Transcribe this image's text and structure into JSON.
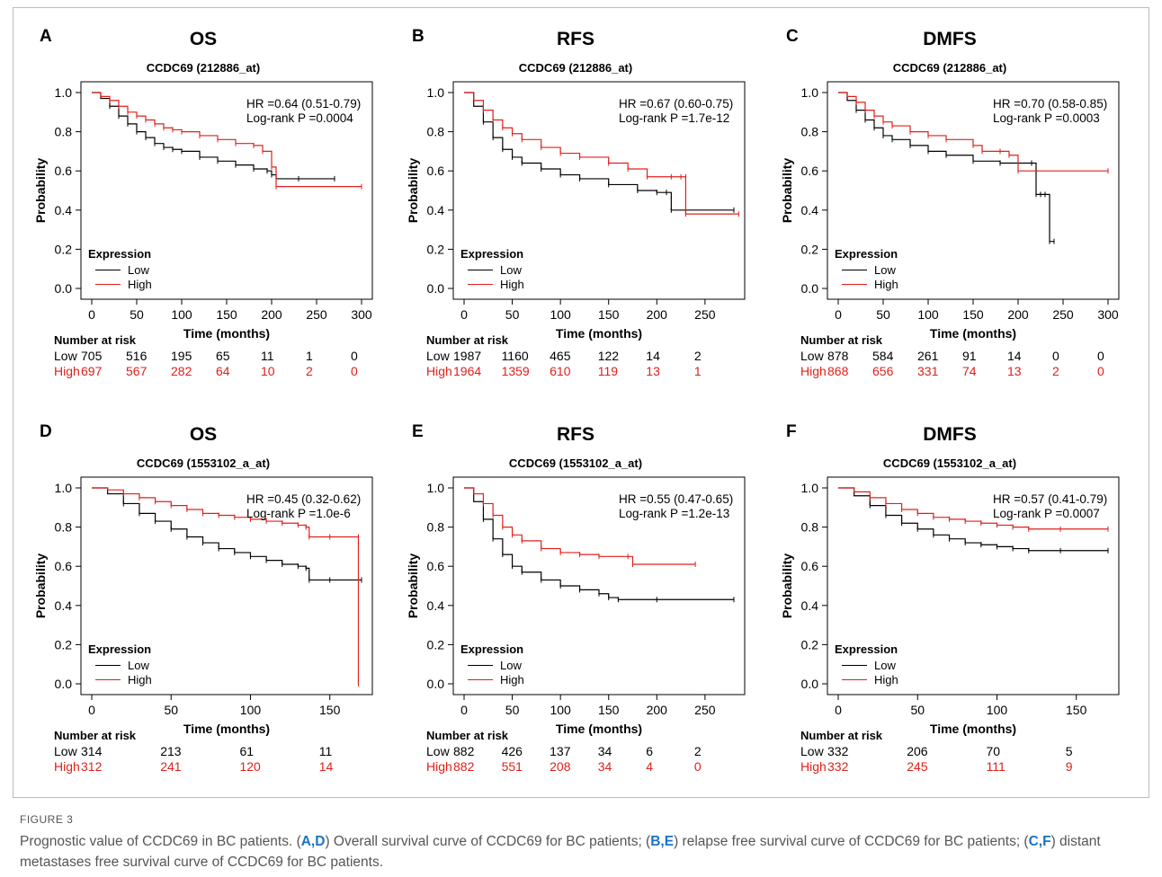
{
  "figure_label": "FIGURE 3",
  "caption": {
    "p1": "Prognostic value of CCDC69 in BC patients. (",
    "l1": "A,D",
    "p2": ") Overall survival curve of CCDC69 for BC patients; (",
    "l2": "B,E",
    "p3": ") relapse free survival curve of CCDC69 for BC patients; (",
    "l3": "C,F",
    "p4": ") distant metastases free survival curve of CCDC69 for BC patients."
  },
  "colors": {
    "low": "#000000",
    "high": "#e0201b",
    "caption_link": "#1a73c8"
  },
  "risk_title": "Number at risk",
  "legend_title": "Expression",
  "x_axis_label": "Time (months)",
  "y_axis_label": "Probability",
  "chart_data": [
    {
      "type": "line",
      "panel": "A",
      "title": "OS",
      "subtitle": "CCDC69 (212886_at)",
      "hr": "HR =0.64 (0.51-0.79)",
      "logrank": "Log-rank P =0.0004",
      "xlabel": "Time (months)",
      "ylabel": "Probability",
      "xlim": [
        0,
        300
      ],
      "xticks": [
        0,
        50,
        100,
        150,
        200,
        250,
        300
      ],
      "ylim": [
        0,
        1
      ],
      "yticks": [
        "0.0",
        "0.2",
        "0.4",
        "0.6",
        "0.8",
        "1.0"
      ],
      "legend": [
        "Low",
        "High"
      ],
      "legend_position": "bottom-left",
      "series": [
        {
          "name": "Low",
          "x": [
            0,
            10,
            20,
            30,
            40,
            50,
            60,
            70,
            80,
            90,
            100,
            120,
            140,
            160,
            180,
            195,
            200,
            205,
            230,
            270
          ],
          "y": [
            1.0,
            0.97,
            0.93,
            0.88,
            0.84,
            0.8,
            0.77,
            0.74,
            0.72,
            0.71,
            0.7,
            0.67,
            0.65,
            0.63,
            0.61,
            0.6,
            0.58,
            0.56,
            0.56,
            0.56
          ]
        },
        {
          "name": "High",
          "x": [
            0,
            10,
            20,
            30,
            40,
            50,
            60,
            70,
            80,
            90,
            100,
            120,
            140,
            160,
            180,
            190,
            200,
            205,
            300
          ],
          "y": [
            1.0,
            0.98,
            0.96,
            0.93,
            0.9,
            0.88,
            0.86,
            0.84,
            0.82,
            0.81,
            0.8,
            0.78,
            0.76,
            0.74,
            0.73,
            0.7,
            0.62,
            0.52,
            0.52
          ]
        }
      ],
      "risk": {
        "low": [
          "705",
          "516",
          "195",
          "65",
          "11",
          "1",
          "0"
        ],
        "high": [
          "697",
          "567",
          "282",
          "64",
          "10",
          "2",
          "0"
        ]
      }
    },
    {
      "type": "line",
      "panel": "B",
      "title": "RFS",
      "subtitle": "CCDC69 (212886_at)",
      "hr": "HR =0.67 (0.60-0.75)",
      "logrank": "Log-rank P =1.7e-12",
      "xlabel": "Time (months)",
      "ylabel": "Probability",
      "xlim": [
        0,
        280
      ],
      "xticks": [
        0,
        50,
        100,
        150,
        200,
        250
      ],
      "ylim": [
        0,
        1
      ],
      "yticks": [
        "0.0",
        "0.2",
        "0.4",
        "0.6",
        "0.8",
        "1.0"
      ],
      "legend": [
        "Low",
        "High"
      ],
      "legend_position": "bottom-left",
      "series": [
        {
          "name": "Low",
          "x": [
            0,
            10,
            20,
            30,
            40,
            50,
            60,
            80,
            100,
            120,
            150,
            180,
            200,
            210,
            215,
            230,
            280
          ],
          "y": [
            1.0,
            0.93,
            0.85,
            0.77,
            0.71,
            0.67,
            0.64,
            0.61,
            0.58,
            0.56,
            0.53,
            0.5,
            0.49,
            0.49,
            0.4,
            0.4,
            0.4
          ]
        },
        {
          "name": "High",
          "x": [
            0,
            10,
            20,
            30,
            40,
            50,
            60,
            80,
            100,
            120,
            150,
            170,
            190,
            215,
            225,
            230,
            230,
            285
          ],
          "y": [
            1.0,
            0.96,
            0.91,
            0.86,
            0.82,
            0.79,
            0.76,
            0.72,
            0.69,
            0.67,
            0.64,
            0.61,
            0.57,
            0.57,
            0.57,
            0.57,
            0.38,
            0.38
          ]
        }
      ],
      "risk": {
        "low": [
          "1987",
          "1160",
          "465",
          "122",
          "14",
          "2"
        ],
        "high": [
          "1964",
          "1359",
          "610",
          "119",
          "13",
          "1"
        ]
      }
    },
    {
      "type": "line",
      "panel": "C",
      "title": "DMFS",
      "subtitle": "CCDC69 (212886_at)",
      "hr": "HR =0.70 (0.58-0.85)",
      "logrank": "Log-rank P =0.0003",
      "xlabel": "Time (months)",
      "ylabel": "Probability",
      "xlim": [
        0,
        300
      ],
      "xticks": [
        0,
        50,
        100,
        150,
        200,
        250,
        300
      ],
      "ylim": [
        0,
        1
      ],
      "yticks": [
        "0.0",
        "0.2",
        "0.4",
        "0.6",
        "0.8",
        "1.0"
      ],
      "legend": [
        "Low",
        "High"
      ],
      "legend_position": "bottom-left",
      "series": [
        {
          "name": "Low",
          "x": [
            0,
            10,
            20,
            30,
            40,
            50,
            60,
            80,
            100,
            120,
            150,
            180,
            200,
            215,
            220,
            225,
            230,
            235,
            240
          ],
          "y": [
            1.0,
            0.96,
            0.91,
            0.86,
            0.82,
            0.78,
            0.76,
            0.73,
            0.7,
            0.68,
            0.65,
            0.64,
            0.64,
            0.64,
            0.48,
            0.48,
            0.48,
            0.24,
            0.24
          ]
        },
        {
          "name": "High",
          "x": [
            0,
            10,
            20,
            30,
            40,
            50,
            60,
            80,
            100,
            120,
            150,
            160,
            180,
            190,
            200,
            300
          ],
          "y": [
            1.0,
            0.98,
            0.95,
            0.91,
            0.88,
            0.85,
            0.83,
            0.8,
            0.78,
            0.76,
            0.73,
            0.7,
            0.7,
            0.68,
            0.6,
            0.6
          ]
        }
      ],
      "risk": {
        "low": [
          "878",
          "584",
          "261",
          "91",
          "14",
          "0",
          "0"
        ],
        "high": [
          "868",
          "656",
          "331",
          "74",
          "13",
          "2",
          "0"
        ]
      }
    },
    {
      "type": "line",
      "panel": "D",
      "title": "OS",
      "subtitle": "CCDC69 (1553102_a_at)",
      "hr": "HR =0.45 (0.32-0.62)",
      "logrank": "Log-rank P =1.0e-6",
      "xlabel": "Time (months)",
      "ylabel": "Probability",
      "xlim": [
        0,
        170
      ],
      "xticks": [
        0,
        50,
        100,
        150
      ],
      "ylim": [
        0,
        1
      ],
      "yticks": [
        "0.0",
        "0.2",
        "0.4",
        "0.6",
        "0.8",
        "1.0"
      ],
      "legend": [
        "Low",
        "High"
      ],
      "legend_position": "bottom-left",
      "series": [
        {
          "name": "Low",
          "x": [
            0,
            10,
            20,
            30,
            40,
            50,
            60,
            70,
            80,
            90,
            100,
            110,
            120,
            130,
            135,
            137,
            150,
            170
          ],
          "y": [
            1.0,
            0.97,
            0.92,
            0.87,
            0.83,
            0.79,
            0.75,
            0.72,
            0.69,
            0.67,
            0.65,
            0.63,
            0.61,
            0.6,
            0.59,
            0.53,
            0.53,
            0.53
          ]
        },
        {
          "name": "High",
          "x": [
            0,
            10,
            20,
            30,
            40,
            50,
            60,
            70,
            80,
            90,
            100,
            110,
            120,
            130,
            135,
            137,
            150,
            168,
            168
          ],
          "y": [
            1.0,
            0.99,
            0.97,
            0.95,
            0.93,
            0.91,
            0.89,
            0.87,
            0.86,
            0.85,
            0.84,
            0.83,
            0.82,
            0.81,
            0.8,
            0.75,
            0.75,
            0.75,
            0.0
          ]
        }
      ],
      "risk": {
        "low": [
          "314",
          "213",
          "61",
          "11"
        ],
        "high": [
          "312",
          "241",
          "120",
          "14"
        ]
      }
    },
    {
      "type": "line",
      "panel": "E",
      "title": "RFS",
      "subtitle": "CCDC69 (1553102_a_at)",
      "hr": "HR =0.55 (0.47-0.65)",
      "logrank": "Log-rank P =1.2e-13",
      "xlabel": "Time (months)",
      "ylabel": "Probability",
      "xlim": [
        0,
        280
      ],
      "xticks": [
        0,
        50,
        100,
        150,
        200,
        250
      ],
      "ylim": [
        0,
        1
      ],
      "yticks": [
        "0.0",
        "0.2",
        "0.4",
        "0.6",
        "0.8",
        "1.0"
      ],
      "legend": [
        "Low",
        "High"
      ],
      "legend_position": "bottom-left",
      "series": [
        {
          "name": "Low",
          "x": [
            0,
            10,
            20,
            30,
            40,
            50,
            60,
            80,
            100,
            120,
            140,
            150,
            160,
            200,
            280
          ],
          "y": [
            1.0,
            0.93,
            0.84,
            0.74,
            0.66,
            0.6,
            0.57,
            0.53,
            0.5,
            0.48,
            0.46,
            0.44,
            0.43,
            0.43,
            0.43
          ]
        },
        {
          "name": "High",
          "x": [
            0,
            10,
            20,
            30,
            40,
            50,
            60,
            80,
            100,
            120,
            140,
            170,
            175,
            240
          ],
          "y": [
            1.0,
            0.97,
            0.92,
            0.86,
            0.8,
            0.76,
            0.73,
            0.69,
            0.67,
            0.66,
            0.65,
            0.65,
            0.61,
            0.61
          ]
        }
      ],
      "risk": {
        "low": [
          "882",
          "426",
          "137",
          "34",
          "6",
          "2"
        ],
        "high": [
          "882",
          "551",
          "208",
          "34",
          "4",
          "0"
        ]
      }
    },
    {
      "type": "line",
      "panel": "F",
      "title": "DMFS",
      "subtitle": "CCDC69 (1553102_a_at)",
      "hr": "HR =0.57 (0.41-0.79)",
      "logrank": "Log-rank P =0.0007",
      "xlabel": "Time (months)",
      "ylabel": "Probability",
      "xlim": [
        0,
        170
      ],
      "xticks": [
        0,
        50,
        100,
        150
      ],
      "ylim": [
        0,
        1
      ],
      "yticks": [
        "0.0",
        "0.2",
        "0.4",
        "0.6",
        "0.8",
        "1.0"
      ],
      "legend": [
        "Low",
        "High"
      ],
      "legend_position": "bottom-left",
      "series": [
        {
          "name": "Low",
          "x": [
            0,
            10,
            20,
            30,
            40,
            50,
            60,
            70,
            80,
            90,
            100,
            110,
            120,
            140,
            170
          ],
          "y": [
            1.0,
            0.96,
            0.91,
            0.86,
            0.82,
            0.79,
            0.76,
            0.74,
            0.72,
            0.71,
            0.7,
            0.69,
            0.68,
            0.68,
            0.68
          ]
        },
        {
          "name": "High",
          "x": [
            0,
            10,
            20,
            30,
            40,
            50,
            60,
            70,
            80,
            90,
            100,
            110,
            120,
            140,
            170
          ],
          "y": [
            1.0,
            0.98,
            0.95,
            0.92,
            0.89,
            0.87,
            0.85,
            0.84,
            0.83,
            0.82,
            0.81,
            0.8,
            0.79,
            0.79,
            0.79
          ]
        }
      ],
      "risk": {
        "low": [
          "332",
          "206",
          "70",
          "5"
        ],
        "high": [
          "332",
          "245",
          "111",
          "9"
        ]
      }
    }
  ]
}
